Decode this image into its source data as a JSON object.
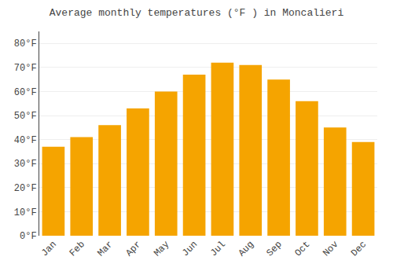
{
  "chart_data": {
    "type": "bar",
    "title": "Average monthly temperatures (°F ) in Moncalieri",
    "categories": [
      "Jan",
      "Feb",
      "Mar",
      "Apr",
      "May",
      "Jun",
      "Jul",
      "Aug",
      "Sep",
      "Oct",
      "Nov",
      "Dec"
    ],
    "values": [
      37,
      41,
      46,
      53,
      60,
      67,
      72,
      71,
      65,
      56,
      45,
      39
    ],
    "color": "#F5A400",
    "ylim": [
      0,
      85
    ],
    "yticks": [
      {
        "value": 0,
        "label": "0°F"
      },
      {
        "value": 10,
        "label": "10°F"
      },
      {
        "value": 20,
        "label": "20°F"
      },
      {
        "value": 30,
        "label": "30°F"
      },
      {
        "value": 40,
        "label": "40°F"
      },
      {
        "value": 50,
        "label": "50°F"
      },
      {
        "value": 60,
        "label": "60°F"
      },
      {
        "value": 70,
        "label": "70°F"
      },
      {
        "value": 80,
        "label": "80°F"
      }
    ],
    "grid": true
  }
}
